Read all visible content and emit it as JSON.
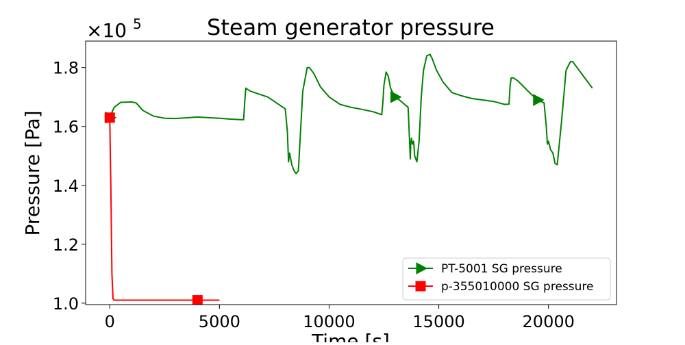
{
  "chart_data": {
    "type": "line",
    "title": "Steam generator pressure",
    "xlabel": "Time [s]",
    "ylabel": "Pressure [Pa]",
    "y_multiplier_label": "×10",
    "y_multiplier_exponent": "5",
    "xlim": [
      -1100,
      23100
    ],
    "ylim": [
      0.995,
      1.89
    ],
    "y_scale_factor": 100000,
    "x_ticks": [
      {
        "value": 0,
        "label": "0"
      },
      {
        "value": 5000,
        "label": "5000"
      },
      {
        "value": 10000,
        "label": "10000"
      },
      {
        "value": 15000,
        "label": "15000"
      },
      {
        "value": 20000,
        "label": "20000"
      }
    ],
    "y_ticks": [
      {
        "value": 1.0,
        "label": "1.0"
      },
      {
        "value": 1.2,
        "label": "1.2"
      },
      {
        "value": 1.4,
        "label": "1.4"
      },
      {
        "value": 1.6,
        "label": "1.6"
      },
      {
        "value": 1.8,
        "label": "1.8"
      }
    ],
    "grid": false,
    "legend_position": "lower-right",
    "series": [
      {
        "name": "PT-5001 SG pressure",
        "color": "#008000",
        "marker": "triangle-right",
        "marker_x": [
          0,
          13000,
          19500
        ],
        "x": [
          0,
          200,
          500,
          1000,
          1200,
          1500,
          2000,
          2500,
          3000,
          4000,
          5000,
          5500,
          6000,
          6100,
          6150,
          6200,
          6400,
          6800,
          7200,
          7600,
          8000,
          8100,
          8150,
          8200,
          8300,
          8400,
          8500,
          8600,
          8800,
          9000,
          9100,
          9300,
          9600,
          10000,
          10500,
          11000,
          11500,
          12000,
          12400,
          12450,
          12500,
          12600,
          12700,
          12800,
          12900,
          13000,
          13200,
          13600,
          13700,
          13720,
          13750,
          13800,
          13850,
          13900,
          13950,
          14000,
          14100,
          14200,
          14300,
          14450,
          14600,
          14700,
          14900,
          15200,
          15600,
          16000,
          16500,
          17000,
          17500,
          18000,
          18200,
          18250,
          18300,
          18400,
          18600,
          18800,
          19000,
          19200,
          19500,
          19800,
          19900,
          19950,
          20000,
          20100,
          20200,
          20300,
          20400,
          20600,
          20800,
          21000,
          21100,
          21300,
          21600,
          22000
        ],
        "y": [
          1.63,
          1.665,
          1.682,
          1.683,
          1.68,
          1.655,
          1.635,
          1.628,
          1.627,
          1.632,
          1.628,
          1.625,
          1.623,
          1.623,
          1.68,
          1.73,
          1.72,
          1.71,
          1.7,
          1.68,
          1.66,
          1.58,
          1.48,
          1.51,
          1.47,
          1.45,
          1.44,
          1.45,
          1.72,
          1.8,
          1.8,
          1.78,
          1.735,
          1.7,
          1.675,
          1.665,
          1.658,
          1.65,
          1.64,
          1.68,
          1.74,
          1.785,
          1.77,
          1.73,
          1.715,
          1.7,
          1.69,
          1.665,
          1.49,
          1.54,
          1.56,
          1.54,
          1.55,
          1.5,
          1.49,
          1.48,
          1.55,
          1.7,
          1.79,
          1.84,
          1.845,
          1.83,
          1.79,
          1.75,
          1.715,
          1.705,
          1.695,
          1.69,
          1.685,
          1.675,
          1.676,
          1.74,
          1.765,
          1.765,
          1.755,
          1.74,
          1.725,
          1.71,
          1.69,
          1.68,
          1.6,
          1.54,
          1.55,
          1.52,
          1.51,
          1.475,
          1.47,
          1.62,
          1.79,
          1.82,
          1.82,
          1.8,
          1.77,
          1.73
        ]
      },
      {
        "name": "p-355010000 SG pressure",
        "color": "#ff0000",
        "marker": "square",
        "marker_x": [
          0,
          4000
        ],
        "x": [
          0,
          50,
          100,
          150,
          200,
          250,
          300,
          1000,
          2000,
          3000,
          4000,
          5000
        ],
        "y": [
          1.63,
          1.4,
          1.1,
          1.015,
          1.01,
          1.01,
          1.01,
          1.01,
          1.01,
          1.01,
          1.01,
          1.01
        ]
      }
    ]
  }
}
